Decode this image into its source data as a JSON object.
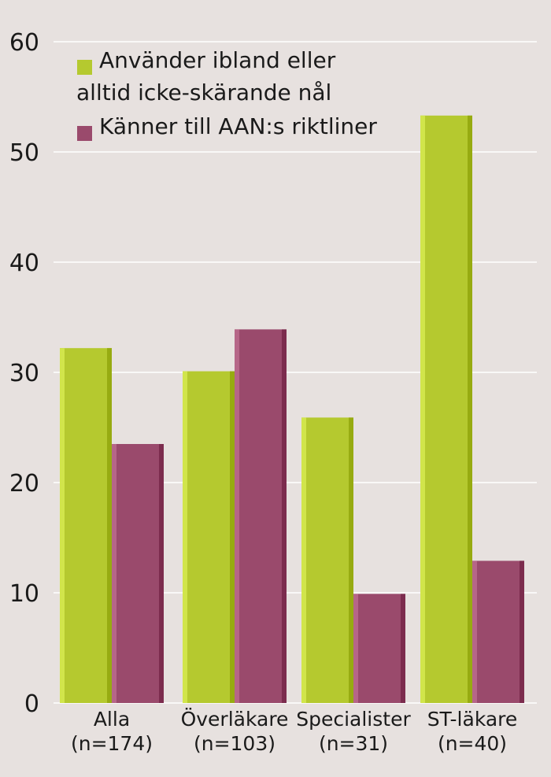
{
  "chart_data": {
    "type": "bar",
    "categories": [
      [
        "Alla",
        "(n=174)"
      ],
      [
        "Överläkare",
        "(n=103)"
      ],
      [
        "Specialister",
        "(n=31)"
      ],
      [
        "ST-läkare",
        "(n=40)"
      ]
    ],
    "series": [
      {
        "name_lines": [
          "Använder ibland eller",
          "alltid icke-skärande nål"
        ],
        "color": "#b5c92f",
        "values": [
          32.2,
          30.1,
          25.9,
          53.3
        ]
      },
      {
        "name_lines": [
          "Känner till AAN:s riktliner"
        ],
        "color": "#9a4a6c",
        "values": [
          23.5,
          33.9,
          9.9,
          12.9
        ]
      }
    ],
    "ylim": [
      0,
      60
    ],
    "yticks": [
      "0",
      "10",
      "20",
      "30",
      "40",
      "50",
      "60"
    ],
    "grid": true,
    "legend_position": "top-left"
  }
}
